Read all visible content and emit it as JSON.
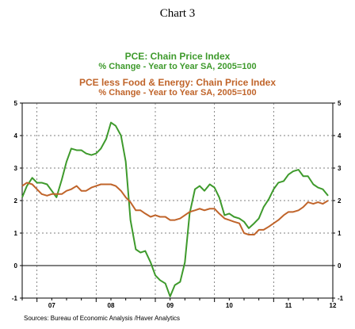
{
  "title": "Chart 3",
  "legend": [
    {
      "title": "PCE: Chain Price Index",
      "subtitle": "% Change - Year to Year   SA, 2005=100",
      "color": "#3e9a2c"
    },
    {
      "title": "PCE less Food & Energy: Chain Price Index",
      "subtitle": "% Change - Year to Year   SA, 2005=100",
      "color": "#c0642a"
    }
  ],
  "source": "Sources:  Bureau of Economic Analysis /Haver Analytics",
  "chart_data": {
    "type": "line",
    "title": "Chart 3",
    "ylim": [
      -1,
      5
    ],
    "yticks": [
      5,
      4,
      3,
      2,
      1,
      0,
      -1
    ],
    "xlim": [
      2006.75,
      2012.0
    ],
    "x_labels": [
      {
        "text": "07",
        "x": 2007.25
      },
      {
        "text": "08",
        "x": 2008.25
      },
      {
        "text": "09",
        "x": 2009.25
      },
      {
        "text": "10",
        "x": 2010.25
      },
      {
        "text": "11",
        "x": 2011.25
      },
      {
        "text": "12",
        "x": 2012.0
      }
    ],
    "grid": true,
    "series": [
      {
        "name": "PCE: Chain Price Index",
        "color": "#3e9a2c",
        "points": [
          [
            2006.75,
            2.1
          ],
          [
            2006.83,
            2.45
          ],
          [
            2006.92,
            2.7
          ],
          [
            2007.0,
            2.55
          ],
          [
            2007.08,
            2.55
          ],
          [
            2007.17,
            2.5
          ],
          [
            2007.25,
            2.3
          ],
          [
            2007.33,
            2.1
          ],
          [
            2007.42,
            2.65
          ],
          [
            2007.5,
            3.2
          ],
          [
            2007.58,
            3.6
          ],
          [
            2007.67,
            3.55
          ],
          [
            2007.75,
            3.55
          ],
          [
            2007.83,
            3.45
          ],
          [
            2007.92,
            3.4
          ],
          [
            2008.0,
            3.45
          ],
          [
            2008.08,
            3.6
          ],
          [
            2008.17,
            3.9
          ],
          [
            2008.25,
            4.4
          ],
          [
            2008.33,
            4.3
          ],
          [
            2008.42,
            4.0
          ],
          [
            2008.5,
            3.2
          ],
          [
            2008.58,
            1.4
          ],
          [
            2008.67,
            0.5
          ],
          [
            2008.75,
            0.4
          ],
          [
            2008.83,
            0.45
          ],
          [
            2008.92,
            0.1
          ],
          [
            2009.0,
            -0.3
          ],
          [
            2009.08,
            -0.45
          ],
          [
            2009.17,
            -0.55
          ],
          [
            2009.25,
            -0.95
          ],
          [
            2009.33,
            -0.6
          ],
          [
            2009.42,
            -0.5
          ],
          [
            2009.5,
            0.1
          ],
          [
            2009.58,
            1.6
          ],
          [
            2009.67,
            2.35
          ],
          [
            2009.75,
            2.45
          ],
          [
            2009.83,
            2.3
          ],
          [
            2009.92,
            2.5
          ],
          [
            2010.0,
            2.4
          ],
          [
            2010.08,
            2.1
          ],
          [
            2010.17,
            1.55
          ],
          [
            2010.25,
            1.6
          ],
          [
            2010.33,
            1.5
          ],
          [
            2010.42,
            1.45
          ],
          [
            2010.5,
            1.35
          ],
          [
            2010.58,
            1.15
          ],
          [
            2010.67,
            1.3
          ],
          [
            2010.75,
            1.45
          ],
          [
            2010.83,
            1.8
          ],
          [
            2010.92,
            2.05
          ],
          [
            2011.0,
            2.35
          ],
          [
            2011.08,
            2.55
          ],
          [
            2011.17,
            2.6
          ],
          [
            2011.25,
            2.8
          ],
          [
            2011.33,
            2.9
          ],
          [
            2011.42,
            2.95
          ],
          [
            2011.5,
            2.75
          ],
          [
            2011.58,
            2.75
          ],
          [
            2011.67,
            2.5
          ],
          [
            2011.75,
            2.4
          ],
          [
            2011.83,
            2.35
          ],
          [
            2011.92,
            2.15
          ]
        ]
      },
      {
        "name": "PCE less Food & Energy: Chain Price Index",
        "color": "#c0642a",
        "points": [
          [
            2006.75,
            2.45
          ],
          [
            2006.83,
            2.55
          ],
          [
            2006.92,
            2.5
          ],
          [
            2007.0,
            2.35
          ],
          [
            2007.08,
            2.2
          ],
          [
            2007.17,
            2.15
          ],
          [
            2007.25,
            2.2
          ],
          [
            2007.33,
            2.2
          ],
          [
            2007.42,
            2.2
          ],
          [
            2007.5,
            2.3
          ],
          [
            2007.58,
            2.35
          ],
          [
            2007.67,
            2.45
          ],
          [
            2007.75,
            2.3
          ],
          [
            2007.83,
            2.3
          ],
          [
            2007.92,
            2.4
          ],
          [
            2008.0,
            2.45
          ],
          [
            2008.08,
            2.5
          ],
          [
            2008.17,
            2.5
          ],
          [
            2008.25,
            2.5
          ],
          [
            2008.33,
            2.45
          ],
          [
            2008.42,
            2.3
          ],
          [
            2008.5,
            2.1
          ],
          [
            2008.58,
            1.95
          ],
          [
            2008.67,
            1.7
          ],
          [
            2008.75,
            1.7
          ],
          [
            2008.83,
            1.6
          ],
          [
            2008.92,
            1.5
          ],
          [
            2009.0,
            1.55
          ],
          [
            2009.08,
            1.5
          ],
          [
            2009.17,
            1.5
          ],
          [
            2009.25,
            1.4
          ],
          [
            2009.33,
            1.4
          ],
          [
            2009.42,
            1.45
          ],
          [
            2009.5,
            1.55
          ],
          [
            2009.58,
            1.65
          ],
          [
            2009.67,
            1.7
          ],
          [
            2009.75,
            1.75
          ],
          [
            2009.83,
            1.7
          ],
          [
            2009.92,
            1.75
          ],
          [
            2010.0,
            1.75
          ],
          [
            2010.08,
            1.6
          ],
          [
            2010.17,
            1.45
          ],
          [
            2010.25,
            1.4
          ],
          [
            2010.33,
            1.35
          ],
          [
            2010.42,
            1.3
          ],
          [
            2010.5,
            1.0
          ],
          [
            2010.58,
            0.95
          ],
          [
            2010.67,
            0.95
          ],
          [
            2010.75,
            1.1
          ],
          [
            2010.83,
            1.1
          ],
          [
            2010.92,
            1.2
          ],
          [
            2011.0,
            1.3
          ],
          [
            2011.08,
            1.4
          ],
          [
            2011.17,
            1.55
          ],
          [
            2011.25,
            1.65
          ],
          [
            2011.33,
            1.65
          ],
          [
            2011.42,
            1.7
          ],
          [
            2011.5,
            1.8
          ],
          [
            2011.58,
            1.95
          ],
          [
            2011.67,
            1.9
          ],
          [
            2011.75,
            1.95
          ],
          [
            2011.83,
            1.9
          ],
          [
            2011.92,
            2.0
          ]
        ]
      }
    ]
  }
}
